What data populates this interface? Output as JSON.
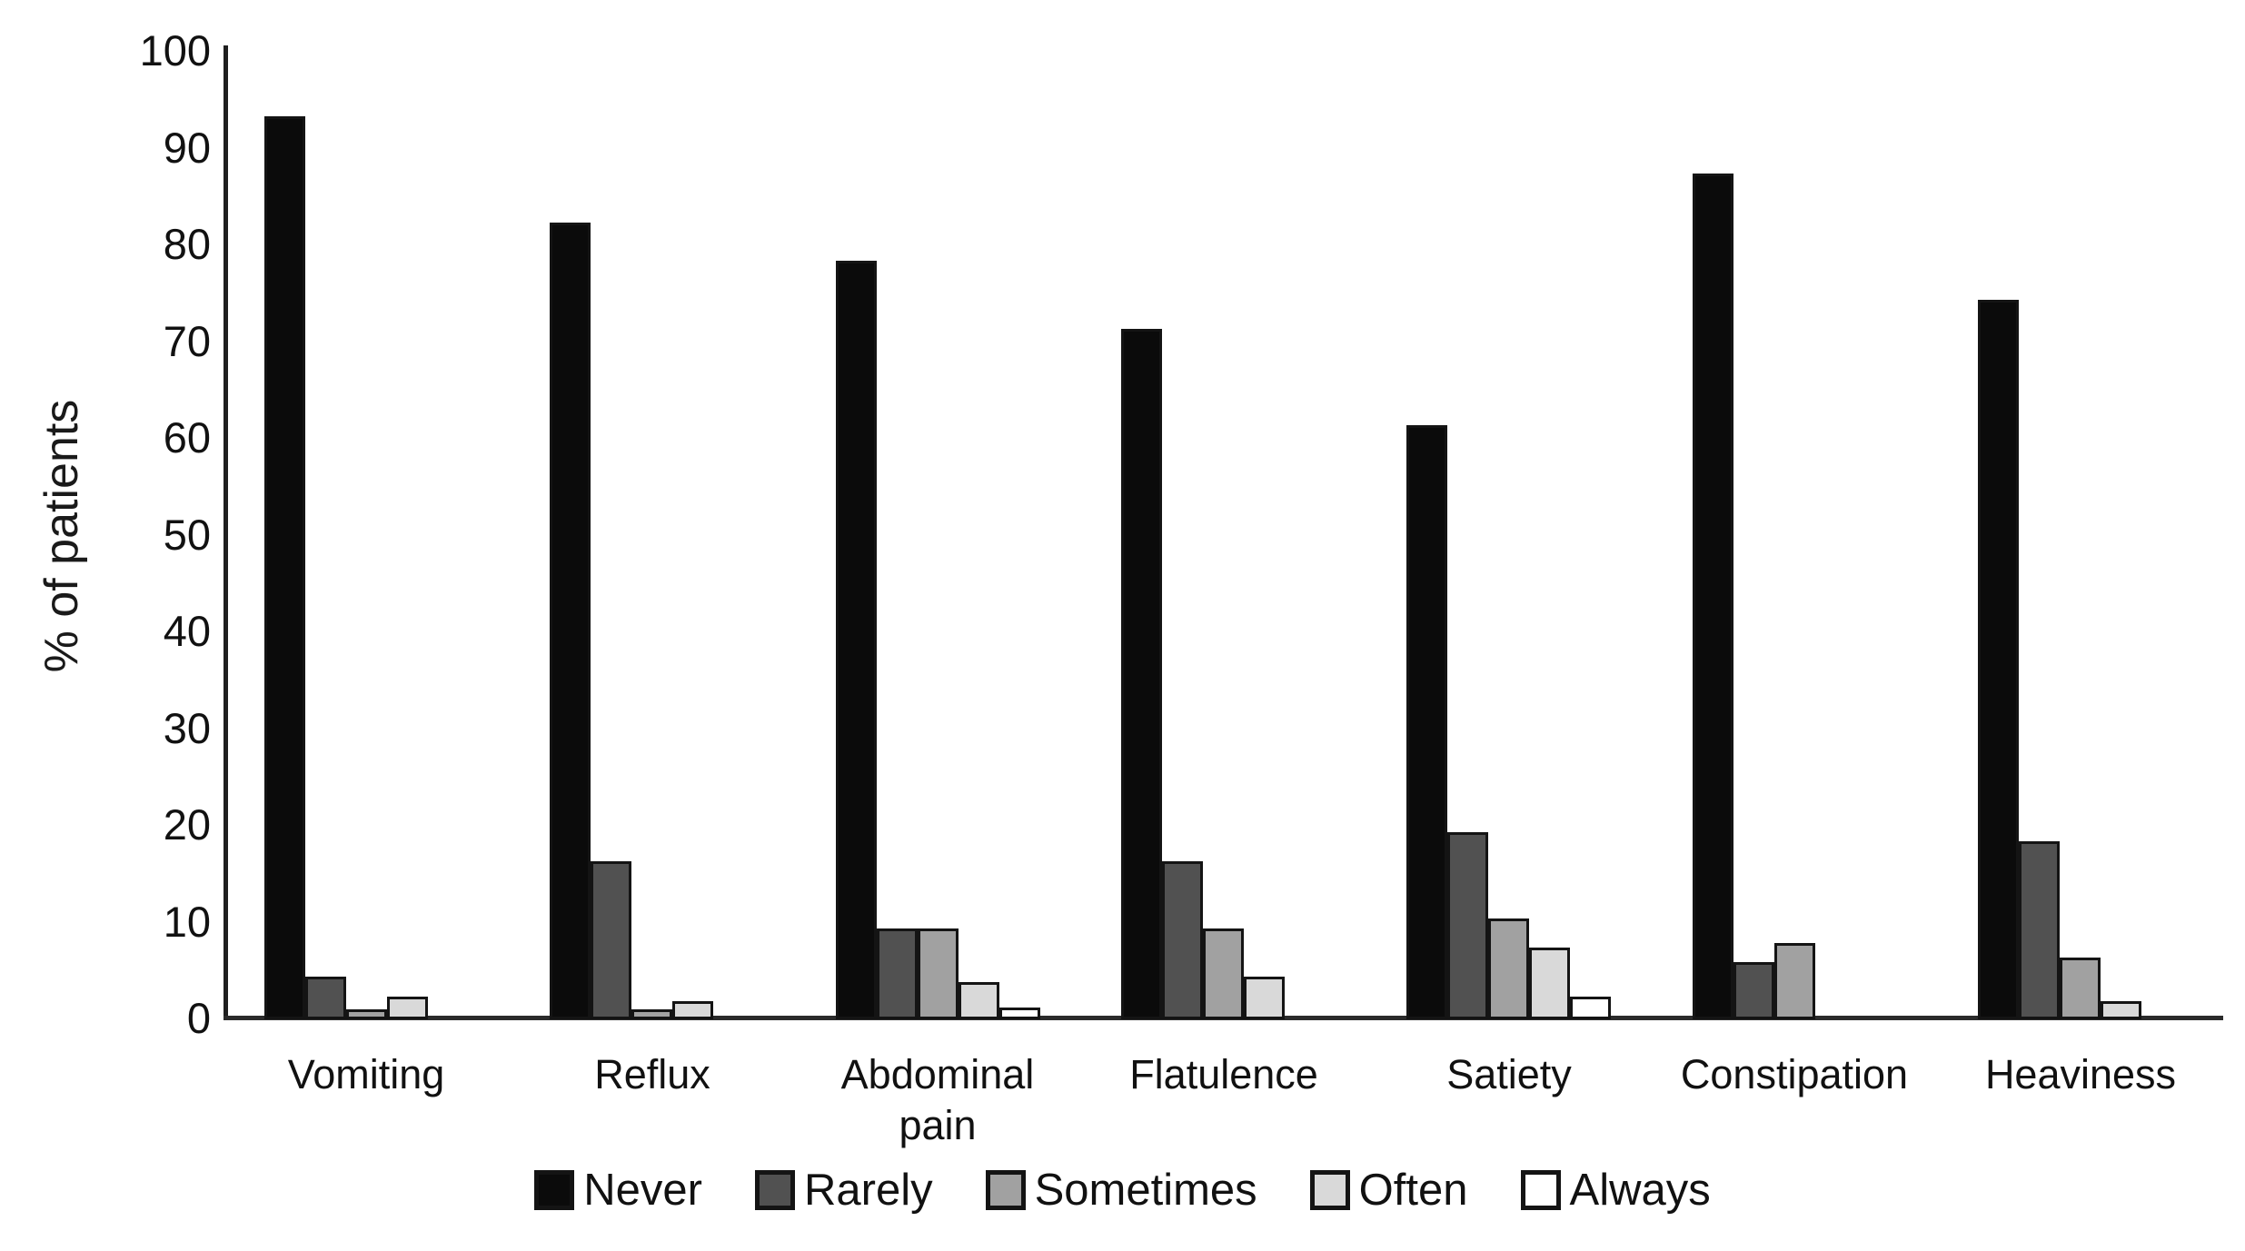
{
  "chart_data": {
    "type": "bar",
    "title": "",
    "xlabel": "",
    "ylabel": "% of patients",
    "ylim": [
      0,
      100
    ],
    "yticks": [
      0,
      10,
      20,
      30,
      40,
      50,
      60,
      70,
      80,
      90,
      100
    ],
    "grid": false,
    "legend_position": "bottom",
    "categories": [
      "Vomiting",
      "Reflux",
      "Abdominal pain",
      "Flatulence",
      "Satiety",
      "Constipation",
      "Heaviness"
    ],
    "series": [
      {
        "name": "Never",
        "color": "#0b0b0b",
        "values": [
          93,
          82,
          78,
          71,
          61,
          87,
          74
        ]
      },
      {
        "name": "Rarely",
        "color": "#515151",
        "values": [
          4,
          16,
          9,
          16,
          19,
          5.5,
          18
        ]
      },
      {
        "name": "Sometimes",
        "color": "#a1a1a1",
        "values": [
          0.7,
          0.7,
          9,
          9,
          10,
          7.5,
          6
        ]
      },
      {
        "name": "Often",
        "color": "#d9d9d9",
        "values": [
          2,
          1.5,
          3.5,
          4,
          7,
          0,
          1.5
        ]
      },
      {
        "name": "Always",
        "color": "#ffffff",
        "values": [
          0,
          0,
          0.8,
          0,
          2,
          0,
          0
        ]
      }
    ],
    "bar_outline_color": "#141414",
    "axis_color": "#1f1f1f"
  }
}
